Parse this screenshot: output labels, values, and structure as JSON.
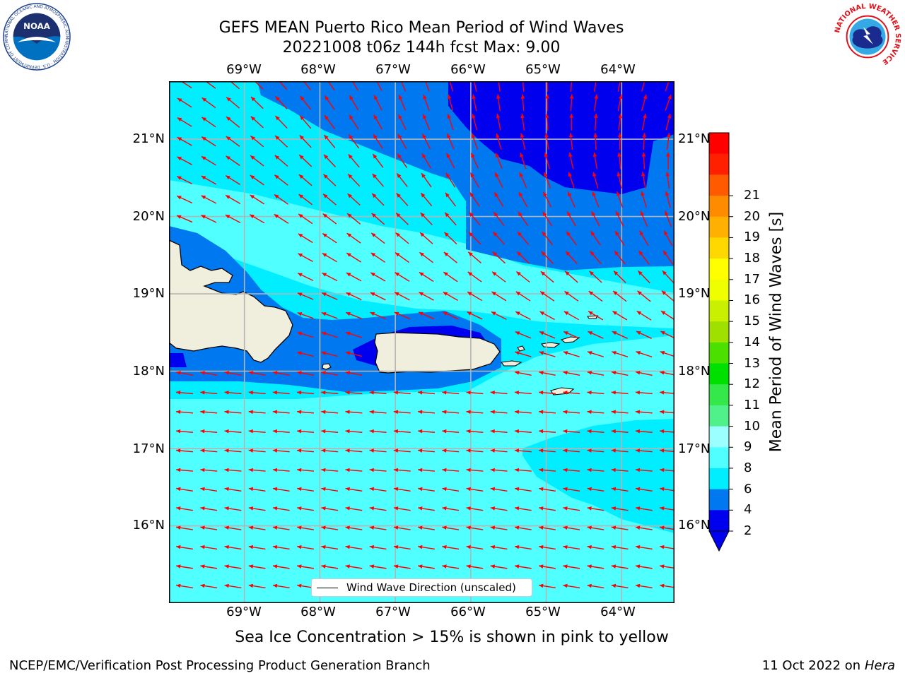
{
  "title": {
    "line1": "GEFS MEAN Puerto Rico Mean Period of Wind Waves",
    "line2": "20221008 t06z 144h fcst   Max: 9.00"
  },
  "axes": {
    "lon_labels": [
      "69°W",
      "68°W",
      "67°W",
      "66°W",
      "65°W",
      "64°W"
    ],
    "lat_labels": [
      "21°N",
      "20°N",
      "19°N",
      "18°N",
      "17°N",
      "16°N"
    ]
  },
  "legend": {
    "label": "Wind Wave Direction (unscaled)"
  },
  "colorbar": {
    "label": "Mean Period of Wind Waves [s]",
    "ticks": [
      "21",
      "20",
      "19",
      "18",
      "17",
      "16",
      "15",
      "14",
      "13",
      "12",
      "11",
      "10",
      "9",
      "8",
      "6",
      "4",
      "2"
    ],
    "colors": [
      "#0000ee",
      "#0078f0",
      "#00eeff",
      "#50ffff",
      "#9cffff",
      "#50f08a",
      "#34e84a",
      "#00e000",
      "#4ce000",
      "#a0e000",
      "#c8f000",
      "#f0ff00",
      "#ffff00",
      "#ffd800",
      "#ffb000",
      "#ff8c00",
      "#ff5a00",
      "#ff2000",
      "#ff0000"
    ],
    "extend_color": "#0000ee"
  },
  "ice_note": "Sea Ice Concentration > 15% is shown in pink to yellow",
  "footer": {
    "credit": "NCEP/EMC/Verification Post Processing Product Generation Branch",
    "date": "11 Oct 2022 on",
    "machine": "Hera"
  },
  "map": {
    "lon_range": [
      -70,
      -63.3
    ],
    "lat_range": [
      15.0,
      21.75
    ],
    "arrow_color": "#ff0000",
    "gridline_color": "#b4b4b4",
    "land_color": "#f0eedc"
  },
  "logos": {
    "noaa": "NOAA",
    "noaa_ring": "NATIONAL OCEANIC AND ATMOSPHERIC ADMINISTRATION · U.S. DEPARTMENT OF COMMERCE",
    "nws_ring": "NATIONAL WEATHER SERVICE"
  }
}
